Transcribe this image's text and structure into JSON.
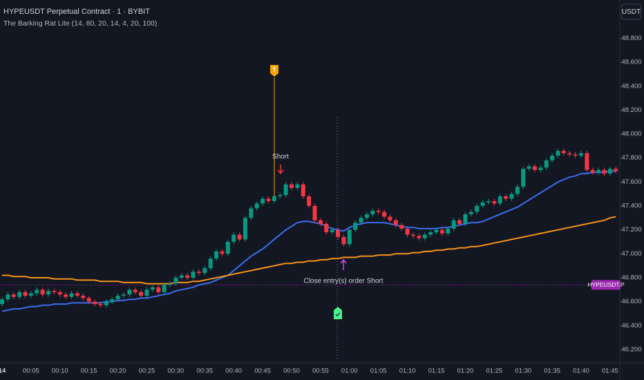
{
  "chart_data": {
    "type": "candlestick",
    "title": "HYPEUSDT Perpetual Contract · 1 · BYBIT",
    "subtitle": "The Barking Rat Lite (14, 80, 20, 14, 4, 20, 100)",
    "currency_button": "USDT",
    "up_color": "#089981",
    "down_color": "#f23645",
    "categories": [
      "14",
      null,
      null,
      null,
      null,
      "00:05",
      null,
      null,
      null,
      null,
      "00:10",
      null,
      null,
      null,
      null,
      "00:15",
      null,
      null,
      null,
      null,
      "00:20",
      null,
      null,
      null,
      null,
      "00:25",
      null,
      null,
      null,
      null,
      "00:30",
      null,
      null,
      null,
      null,
      "00:35",
      null,
      null,
      null,
      null,
      "00:40",
      null,
      null,
      null,
      null,
      "00:45",
      null,
      null,
      null,
      null,
      "00:50",
      null,
      null,
      null,
      null,
      "00:55",
      null,
      null,
      null,
      null,
      "01:00",
      null,
      null,
      null,
      null,
      "01:05",
      null,
      null,
      null,
      null,
      "01:10",
      null,
      null,
      null,
      null,
      "01:15",
      null,
      null,
      null,
      null,
      "01:20",
      null,
      null,
      null,
      null,
      "01:25",
      null,
      null,
      null,
      null,
      "01:30",
      null,
      null,
      null,
      null,
      "01:35",
      null,
      null,
      null,
      null,
      "01:40",
      null,
      null,
      null,
      null,
      "01:45",
      null
    ],
    "open": [
      46.58,
      46.62,
      46.66,
      46.64,
      46.68,
      46.65,
      46.67,
      46.7,
      46.66,
      46.69,
      46.68,
      46.66,
      46.64,
      46.67,
      46.65,
      46.63,
      46.6,
      46.58,
      46.57,
      46.6,
      46.62,
      46.65,
      46.66,
      46.7,
      46.68,
      46.65,
      46.7,
      46.72,
      46.68,
      46.74,
      46.75,
      46.8,
      46.82,
      46.8,
      46.85,
      46.84,
      46.88,
      46.96,
      47.02,
      47.0,
      47.1,
      47.16,
      47.12,
      47.3,
      47.38,
      47.42,
      47.46,
      47.44,
      47.48,
      47.49,
      47.58,
      47.55,
      47.58,
      47.48,
      47.4,
      47.28,
      47.25,
      47.18,
      47.2,
      47.14,
      47.08,
      47.2,
      47.26,
      47.3,
      47.33,
      47.36,
      47.35,
      47.31,
      47.28,
      47.24,
      47.21,
      47.16,
      47.15,
      47.13,
      47.16,
      47.18,
      47.2,
      47.17,
      47.21,
      47.28,
      47.25,
      47.33,
      47.35,
      47.4,
      47.43,
      47.44,
      47.42,
      47.48,
      47.46,
      47.5,
      47.56,
      47.71,
      47.73,
      47.7,
      47.72,
      47.78,
      47.82,
      47.86,
      47.84,
      47.83,
      47.82,
      47.84,
      47.7,
      47.68,
      47.7,
      47.67,
      47.71
    ],
    "high": [
      46.64,
      46.68,
      46.68,
      46.7,
      46.7,
      46.69,
      46.72,
      46.72,
      46.71,
      46.71,
      46.7,
      46.68,
      46.69,
      46.69,
      46.67,
      46.65,
      46.62,
      46.6,
      46.62,
      46.64,
      46.67,
      46.68,
      46.72,
      46.72,
      46.7,
      46.72,
      46.74,
      46.74,
      46.76,
      46.77,
      46.82,
      46.84,
      46.84,
      46.87,
      46.87,
      46.9,
      46.98,
      47.04,
      47.04,
      47.12,
      47.18,
      47.18,
      47.32,
      47.4,
      47.44,
      47.48,
      47.48,
      47.5,
      47.51,
      47.6,
      47.6,
      47.6,
      47.6,
      47.5,
      47.42,
      47.3,
      47.27,
      47.22,
      47.22,
      47.16,
      47.22,
      47.28,
      47.32,
      47.35,
      47.38,
      47.38,
      47.37,
      47.33,
      47.3,
      47.26,
      47.23,
      47.18,
      47.17,
      47.18,
      47.2,
      47.22,
      47.22,
      47.23,
      47.3,
      47.3,
      47.35,
      47.37,
      47.42,
      47.45,
      47.46,
      47.46,
      47.5,
      47.5,
      47.52,
      47.58,
      47.73,
      47.75,
      47.75,
      47.74,
      47.8,
      47.84,
      47.88,
      47.88,
      47.86,
      47.85,
      47.86,
      47.86,
      47.72,
      47.72,
      47.72,
      47.73,
      47.73
    ],
    "low": [
      46.56,
      46.6,
      46.62,
      46.62,
      46.63,
      46.63,
      46.65,
      46.64,
      46.64,
      46.66,
      46.64,
      46.62,
      46.62,
      46.63,
      46.61,
      46.58,
      46.56,
      46.55,
      46.55,
      46.58,
      46.6,
      46.63,
      46.64,
      46.66,
      46.63,
      46.63,
      46.68,
      46.66,
      46.66,
      46.72,
      46.73,
      46.78,
      46.78,
      46.78,
      46.82,
      46.82,
      46.86,
      46.94,
      46.98,
      46.98,
      47.08,
      47.1,
      47.1,
      47.28,
      47.36,
      47.4,
      47.42,
      47.42,
      47.46,
      47.47,
      47.53,
      47.53,
      47.46,
      47.38,
      47.26,
      47.23,
      47.16,
      47.16,
      47.12,
      47.06,
      47.06,
      47.18,
      47.24,
      47.28,
      47.31,
      47.33,
      47.29,
      47.26,
      47.22,
      47.19,
      47.14,
      47.13,
      47.11,
      47.11,
      47.14,
      47.16,
      47.15,
      47.15,
      47.19,
      47.23,
      47.23,
      47.31,
      47.33,
      47.38,
      47.41,
      47.4,
      47.4,
      47.44,
      47.44,
      47.48,
      47.54,
      47.69,
      47.68,
      47.68,
      47.7,
      47.76,
      47.8,
      47.82,
      47.81,
      47.8,
      47.8,
      47.68,
      47.66,
      47.66,
      47.65,
      47.65,
      47.67
    ],
    "close": [
      46.62,
      46.66,
      46.64,
      46.68,
      46.65,
      46.67,
      46.7,
      46.66,
      46.69,
      46.68,
      46.66,
      46.64,
      46.67,
      46.65,
      46.63,
      46.6,
      46.58,
      46.57,
      46.6,
      46.62,
      46.65,
      46.66,
      46.7,
      46.68,
      46.65,
      46.7,
      46.72,
      46.68,
      46.74,
      46.75,
      46.8,
      46.82,
      46.8,
      46.85,
      46.84,
      46.88,
      46.96,
      47.02,
      47.0,
      47.1,
      47.16,
      47.12,
      47.3,
      47.38,
      47.42,
      47.46,
      47.44,
      47.48,
      47.49,
      47.58,
      47.55,
      47.58,
      47.48,
      47.4,
      47.28,
      47.25,
      47.18,
      47.2,
      47.14,
      47.08,
      47.2,
      47.26,
      47.3,
      47.33,
      47.36,
      47.35,
      47.31,
      47.28,
      47.24,
      47.21,
      47.16,
      47.15,
      47.13,
      47.16,
      47.18,
      47.2,
      47.17,
      47.21,
      47.28,
      47.25,
      47.33,
      47.35,
      47.4,
      47.43,
      47.44,
      47.42,
      47.48,
      47.46,
      47.5,
      47.56,
      47.71,
      47.73,
      47.7,
      47.72,
      47.78,
      47.82,
      47.86,
      47.84,
      47.83,
      47.82,
      47.84,
      47.7,
      47.68,
      47.7,
      47.67,
      47.71,
      47.69
    ],
    "lines": [
      {
        "color": "#3d6cf0",
        "values": [
          46.52,
          46.53,
          46.54,
          46.54,
          46.55,
          46.56,
          46.56,
          46.57,
          46.57,
          46.58,
          46.58,
          46.58,
          46.59,
          46.59,
          46.59,
          46.59,
          46.59,
          46.59,
          46.6,
          46.6,
          46.61,
          46.61,
          46.62,
          46.62,
          46.63,
          46.63,
          46.64,
          46.65,
          46.66,
          46.67,
          46.69,
          46.7,
          46.71,
          46.72,
          46.74,
          46.75,
          46.76,
          46.78,
          46.8,
          46.82,
          46.86,
          46.9,
          46.94,
          46.98,
          47.01,
          47.04,
          47.08,
          47.12,
          47.16,
          47.2,
          47.23,
          47.26,
          47.27,
          47.27,
          47.26,
          47.25,
          47.23,
          47.21,
          47.2,
          47.19,
          47.22,
          47.24,
          47.25,
          47.26,
          47.26,
          47.26,
          47.26,
          47.25,
          47.24,
          47.23,
          47.22,
          47.22,
          47.21,
          47.21,
          47.21,
          47.21,
          47.22,
          47.22,
          47.23,
          47.24,
          47.25,
          47.26,
          47.26,
          47.27,
          47.29,
          47.31,
          47.33,
          47.35,
          47.37,
          47.39,
          47.42,
          47.45,
          47.48,
          47.51,
          47.54,
          47.57,
          47.6,
          47.62,
          47.64,
          47.65,
          47.67,
          47.67,
          47.68,
          47.68,
          47.68,
          47.69,
          47.69
        ]
      },
      {
        "color": "#f7931a",
        "values": [
          46.82,
          46.82,
          46.81,
          46.81,
          46.81,
          46.8,
          46.8,
          46.8,
          46.8,
          46.79,
          46.79,
          46.79,
          46.79,
          46.78,
          46.78,
          46.78,
          46.78,
          46.77,
          46.77,
          46.77,
          46.77,
          46.76,
          46.76,
          46.76,
          46.76,
          46.75,
          46.75,
          46.75,
          46.75,
          46.75,
          46.76,
          46.76,
          46.76,
          46.77,
          46.77,
          46.78,
          46.79,
          46.8,
          46.81,
          46.82,
          46.83,
          46.84,
          46.85,
          46.86,
          46.87,
          46.88,
          46.89,
          46.9,
          46.91,
          46.92,
          46.92,
          46.93,
          46.93,
          46.94,
          46.94,
          46.95,
          46.95,
          46.96,
          46.96,
          46.97,
          46.97,
          46.97,
          46.98,
          46.98,
          46.98,
          46.99,
          46.99,
          46.99,
          47.0,
          47.0,
          47.0,
          47.01,
          47.01,
          47.02,
          47.02,
          47.03,
          47.03,
          47.04,
          47.04,
          47.05,
          47.05,
          47.06,
          47.06,
          47.07,
          47.08,
          47.09,
          47.1,
          47.11,
          47.12,
          47.13,
          47.14,
          47.15,
          47.16,
          47.17,
          47.18,
          47.19,
          47.2,
          47.21,
          47.22,
          47.23,
          47.24,
          47.25,
          47.26,
          47.27,
          47.28,
          47.3,
          47.31
        ]
      }
    ],
    "price_line": {
      "value": 46.74,
      "label": "HYPEUSDT.P",
      "color": "#9c27b0"
    },
    "annotations": {
      "entry": "Short",
      "exit": "Close entry(s) order Short"
    },
    "ylim": [
      46.09,
      49.12
    ],
    "yticks": [
      {
        "value": 46.2,
        "label": "46.200"
      },
      {
        "value": 46.4,
        "label": "46.400"
      },
      {
        "value": 46.6,
        "label": "46.600"
      },
      {
        "value": 46.8,
        "label": "46.800"
      },
      {
        "value": 47.0,
        "label": "47.000"
      },
      {
        "value": 47.2,
        "label": "47.200"
      },
      {
        "value": 47.4,
        "label": "47.400"
      },
      {
        "value": 47.6,
        "label": "47.600"
      },
      {
        "value": 47.8,
        "label": "47.800"
      },
      {
        "value": 48.0,
        "label": "48.000"
      },
      {
        "value": 48.2,
        "label": "48.200"
      },
      {
        "value": 48.4,
        "label": "48.400"
      },
      {
        "value": 48.6,
        "label": "48.600"
      },
      {
        "value": 48.8,
        "label": "48.800"
      }
    ]
  }
}
